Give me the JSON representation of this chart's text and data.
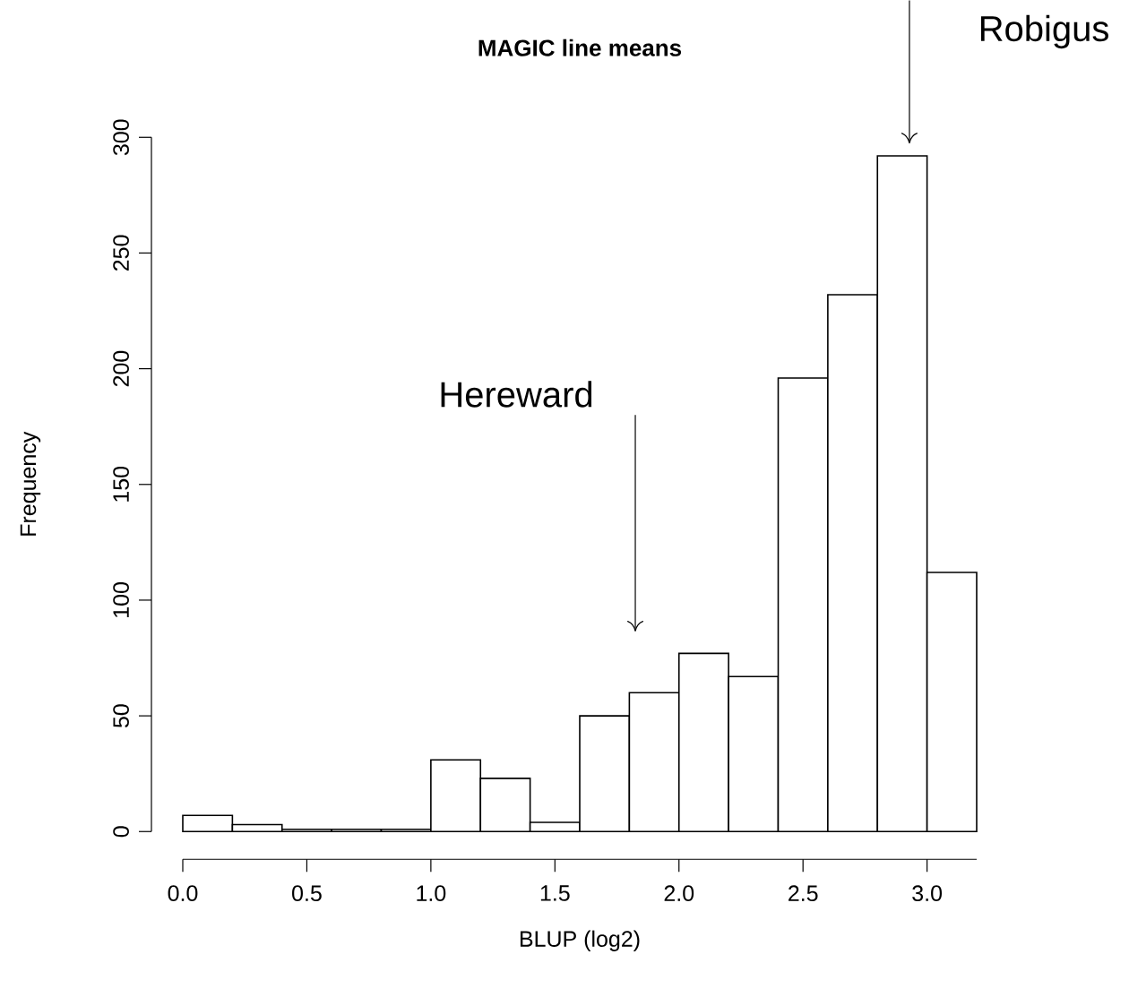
{
  "chart_data": {
    "type": "histogram",
    "title": "MAGIC line means",
    "xlabel": "BLUP (log2)",
    "ylabel": "Frequency",
    "bins": [
      0.0,
      0.2,
      0.4,
      0.6,
      0.8,
      1.0,
      1.2,
      1.4,
      1.6,
      1.8,
      2.0,
      2.2,
      2.4,
      2.6,
      2.8,
      3.0,
      3.2
    ],
    "values": [
      7,
      3,
      1,
      1,
      1,
      31,
      23,
      4,
      50,
      60,
      77,
      67,
      196,
      232,
      292,
      112
    ],
    "color": "#ffffff",
    "xlim": [
      0,
      3.2
    ],
    "ylim": [
      0,
      300
    ],
    "xticks": [
      {
        "value": 0,
        "label": "0.0"
      },
      {
        "value": 0.5,
        "label": "0.5"
      },
      {
        "value": 1,
        "label": "1.0"
      },
      {
        "value": 1.5,
        "label": "1.5"
      },
      {
        "value": 2,
        "label": "2.0"
      },
      {
        "value": 2.5,
        "label": "2.5"
      },
      {
        "value": 3,
        "label": "3.0"
      }
    ],
    "yticks": [
      0,
      50,
      100,
      150,
      200,
      250,
      300
    ],
    "annotations": [
      "Hereward",
      "Robigus"
    ]
  }
}
